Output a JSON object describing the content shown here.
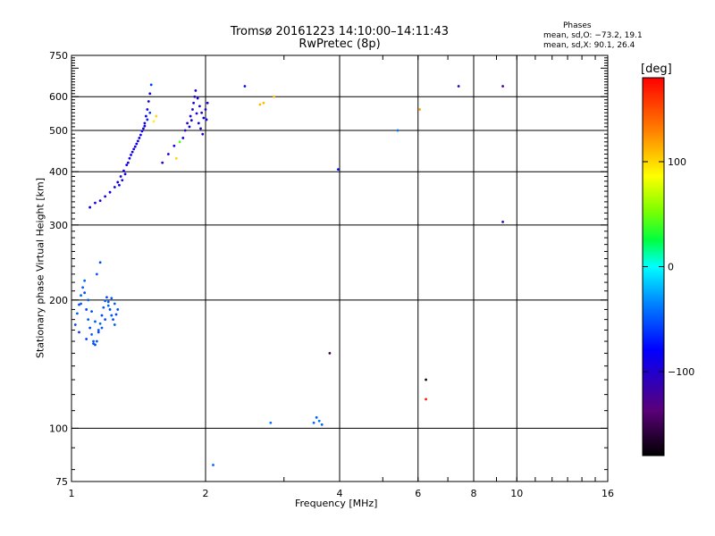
{
  "header": {
    "title_line1": "Tromsø 20161223 14:10:00–14:11:43",
    "title_line2": "RwPretec (8p)",
    "phases_label": "Phases",
    "phases_o": "mean, sd,O: −73.2, 19.1",
    "phases_x": "mean, sd,X:  90.1, 26.4"
  },
  "colorbar": {
    "label": "[deg]",
    "range": [
      -180,
      180
    ],
    "ticks": [
      {
        "value": 100,
        "label": "100"
      },
      {
        "value": 0,
        "label": "0"
      },
      {
        "value": -100,
        "label": "−100"
      }
    ]
  },
  "chart_data": {
    "type": "scatter",
    "xlabel": "Frequency [MHz]",
    "ylabel": "Stationary phase Virtual Height [km]",
    "x_scale": "log",
    "y_scale": "log",
    "xlim": [
      1,
      16
    ],
    "ylim": [
      75,
      750
    ],
    "x_major_ticks": [
      1,
      2,
      4,
      8,
      16
    ],
    "x_minor_ticks": [
      6,
      10
    ],
    "x_tick_labels": [
      "1",
      "2",
      "4",
      "6",
      "8",
      "10",
      "16"
    ],
    "y_tick_labels": [
      "75",
      "100",
      "200",
      "300",
      "400",
      "500",
      "600",
      "750"
    ],
    "y_ticks": [
      75,
      100,
      200,
      300,
      400,
      500,
      600,
      750
    ],
    "grid": true,
    "color_by": "phase_deg",
    "points": [
      [
        1.02,
        175,
        -55
      ],
      [
        1.03,
        186,
        -50
      ],
      [
        1.04,
        195,
        -55
      ],
      [
        1.05,
        205,
        -45
      ],
      [
        1.06,
        214,
        -50
      ],
      [
        1.07,
        222,
        -45
      ],
      [
        1.08,
        190,
        -55
      ],
      [
        1.09,
        180,
        -50
      ],
      [
        1.1,
        172,
        -55
      ],
      [
        1.11,
        166,
        -45
      ],
      [
        1.12,
        160,
        -50
      ],
      [
        1.13,
        157,
        -55
      ],
      [
        1.14,
        160,
        -50
      ],
      [
        1.15,
        168,
        -55
      ],
      [
        1.16,
        176,
        -45
      ],
      [
        1.17,
        184,
        -55
      ],
      [
        1.18,
        192,
        -50
      ],
      [
        1.19,
        199,
        -45
      ],
      [
        1.2,
        203,
        -55
      ],
      [
        1.21,
        198,
        -50
      ],
      [
        1.22,
        190,
        -55
      ],
      [
        1.23,
        184,
        -50
      ],
      [
        1.24,
        180,
        -55
      ],
      [
        1.25,
        175,
        -50
      ],
      [
        1.05,
        196,
        -48
      ],
      [
        1.07,
        208,
        -52
      ],
      [
        1.09,
        200,
        -46
      ],
      [
        1.11,
        188,
        -54
      ],
      [
        1.13,
        178,
        -49
      ],
      [
        1.15,
        170,
        -51
      ],
      [
        1.17,
        172,
        -47
      ],
      [
        1.19,
        180,
        -53
      ],
      [
        1.21,
        194,
        -46
      ],
      [
        1.23,
        202,
        -50
      ],
      [
        1.25,
        196,
        -48
      ],
      [
        1.27,
        190,
        -52
      ],
      [
        1.14,
        230,
        -50
      ],
      [
        1.16,
        245,
        -55
      ],
      [
        1.04,
        168,
        -60
      ],
      [
        1.08,
        162,
        -58
      ],
      [
        1.12,
        158,
        -52
      ],
      [
        1.26,
        185,
        -55
      ],
      [
        1.1,
        330,
        -90
      ],
      [
        1.13,
        338,
        -95
      ],
      [
        1.16,
        342,
        -90
      ],
      [
        1.19,
        350,
        -95
      ],
      [
        1.22,
        358,
        -90
      ],
      [
        1.25,
        368,
        -85
      ],
      [
        1.27,
        378,
        -90
      ],
      [
        1.29,
        390,
        -95
      ],
      [
        1.31,
        402,
        -90
      ],
      [
        1.33,
        415,
        -85
      ],
      [
        1.35,
        430,
        -90
      ],
      [
        1.37,
        445,
        -95
      ],
      [
        1.39,
        458,
        -90
      ],
      [
        1.41,
        472,
        -85
      ],
      [
        1.43,
        488,
        -90
      ],
      [
        1.45,
        505,
        -95
      ],
      [
        1.46,
        520,
        -90
      ],
      [
        1.47,
        540,
        -85
      ],
      [
        1.48,
        560,
        -90
      ],
      [
        1.49,
        585,
        -95
      ],
      [
        1.5,
        610,
        -90
      ],
      [
        1.51,
        640,
        -60
      ],
      [
        1.28,
        372,
        -85
      ],
      [
        1.3,
        382,
        -92
      ],
      [
        1.32,
        395,
        -88
      ],
      [
        1.34,
        420,
        -94
      ],
      [
        1.36,
        438,
        -86
      ],
      [
        1.38,
        452,
        -92
      ],
      [
        1.4,
        465,
        -88
      ],
      [
        1.42,
        480,
        -94
      ],
      [
        1.44,
        498,
        -86
      ],
      [
        1.46,
        512,
        -92
      ],
      [
        1.48,
        530,
        -70
      ],
      [
        1.5,
        550,
        -60
      ],
      [
        1.53,
        525,
        90
      ],
      [
        1.55,
        540,
        100
      ],
      [
        1.6,
        420,
        -100
      ],
      [
        1.65,
        440,
        -95
      ],
      [
        1.7,
        460,
        -90
      ],
      [
        1.75,
        470,
        40
      ],
      [
        1.72,
        430,
        100
      ],
      [
        1.78,
        480,
        -95
      ],
      [
        1.8,
        500,
        -100
      ],
      [
        1.82,
        520,
        -95
      ],
      [
        1.85,
        540,
        -90
      ],
      [
        1.87,
        560,
        -100
      ],
      [
        1.88,
        580,
        -95
      ],
      [
        1.89,
        600,
        -105
      ],
      [
        1.9,
        620,
        -100
      ],
      [
        1.92,
        595,
        -90
      ],
      [
        1.94,
        570,
        -95
      ],
      [
        1.96,
        550,
        -100
      ],
      [
        1.98,
        535,
        -90
      ],
      [
        2.0,
        560,
        -95
      ],
      [
        2.02,
        580,
        -100
      ],
      [
        1.84,
        510,
        -80
      ],
      [
        1.86,
        528,
        -100
      ],
      [
        1.91,
        548,
        -90
      ],
      [
        1.93,
        520,
        -85
      ],
      [
        1.95,
        505,
        -100
      ],
      [
        1.97,
        490,
        -95
      ],
      [
        2.01,
        530,
        -90
      ],
      [
        2.45,
        635,
        -75
      ],
      [
        2.65,
        575,
        110
      ],
      [
        2.7,
        580,
        110
      ],
      [
        2.85,
        600,
        110
      ],
      [
        3.97,
        405,
        -75
      ],
      [
        5.4,
        500,
        -40
      ],
      [
        6.05,
        560,
        120
      ],
      [
        7.4,
        635,
        -110
      ],
      [
        9.3,
        635,
        -120
      ],
      [
        9.3,
        305,
        -110
      ],
      [
        2.8,
        103,
        -40
      ],
      [
        3.5,
        103,
        -45
      ],
      [
        3.55,
        106,
        -45
      ],
      [
        3.6,
        104,
        -40
      ],
      [
        3.65,
        102,
        -45
      ],
      [
        3.8,
        150,
        -150
      ],
      [
        6.25,
        130,
        -170
      ],
      [
        6.25,
        117,
        170
      ],
      [
        2.08,
        82,
        -45
      ]
    ]
  }
}
